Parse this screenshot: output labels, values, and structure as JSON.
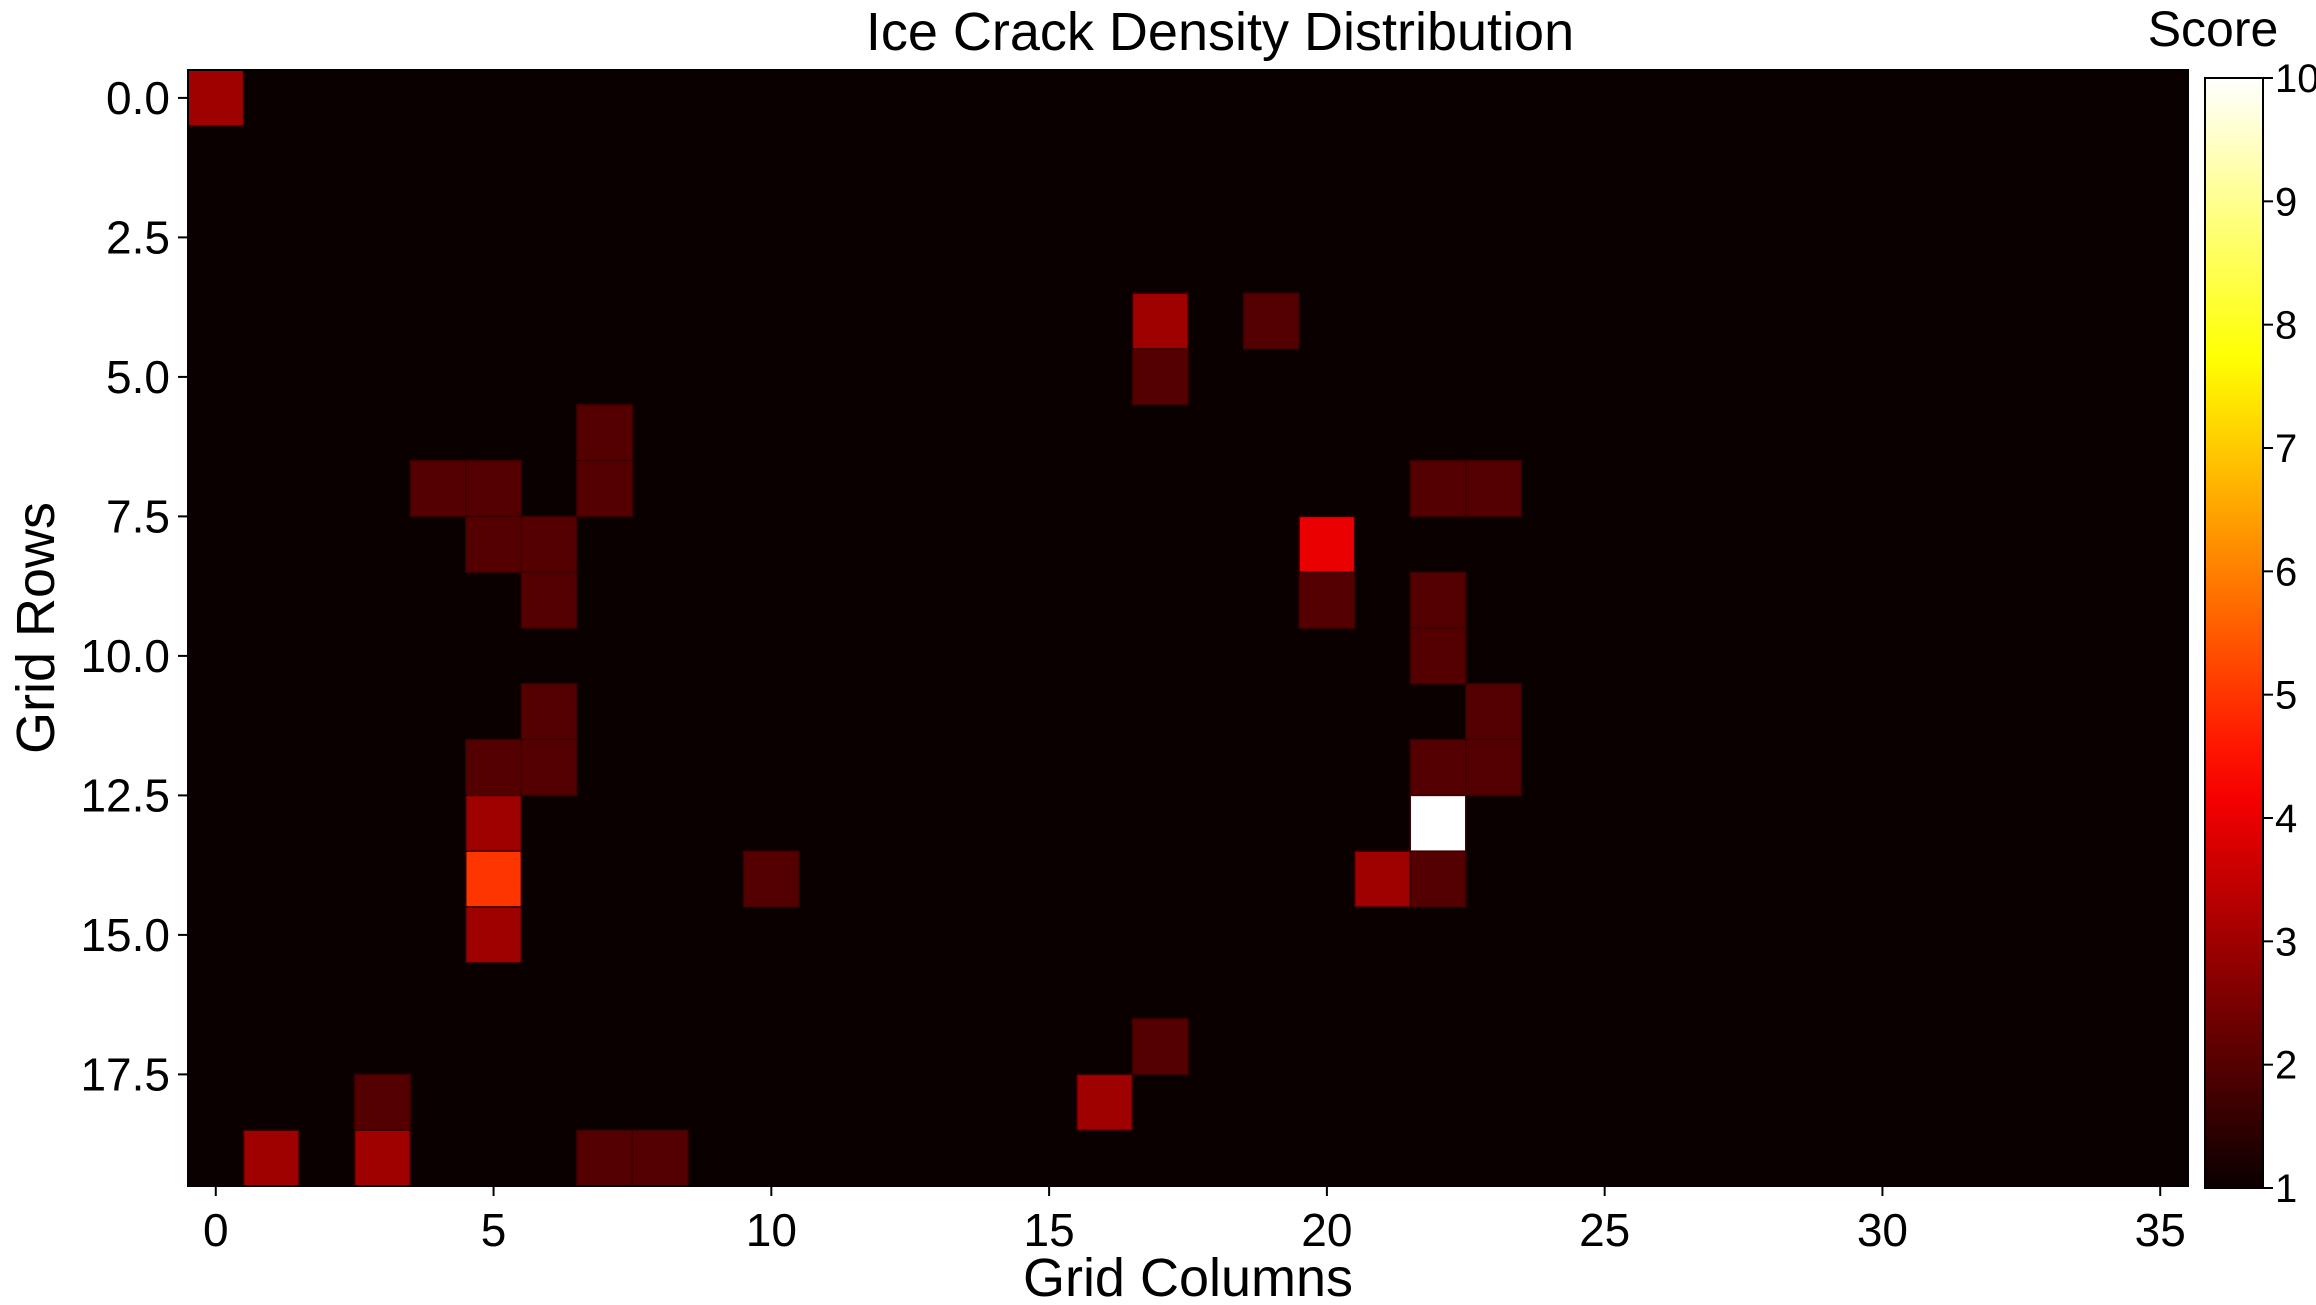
{
  "chart_data": {
    "type": "heatmap",
    "title": "Ice Crack Density Distribution",
    "xlabel": "Grid Columns",
    "ylabel": "Grid Rows",
    "n_cols": 36,
    "n_rows": 20,
    "xlim": [
      -0.5,
      35.5
    ],
    "ylim": [
      -0.5,
      19.5
    ],
    "x_ticks": [
      0,
      5,
      10,
      15,
      20,
      25,
      30,
      35
    ],
    "x_tick_labels": [
      "0",
      "5",
      "10",
      "15",
      "20",
      "25",
      "30",
      "35"
    ],
    "y_ticks": [
      0.0,
      2.5,
      5.0,
      7.5,
      10.0,
      12.5,
      15.0,
      17.5
    ],
    "y_tick_labels": [
      "0.0",
      "2.5",
      "5.0",
      "7.5",
      "10.0",
      "12.5",
      "15.0",
      "17.5"
    ],
    "y_axis_inverted": true,
    "background_value": 1,
    "colorbar": {
      "title": "Score",
      "colormap": "hot",
      "range": [
        1,
        10
      ],
      "ticks": [
        1,
        2,
        3,
        4,
        5,
        6,
        7,
        8,
        9,
        10
      ],
      "tick_labels": [
        "1",
        "2",
        "3",
        "4",
        "5",
        "6",
        "7",
        "8",
        "9",
        "10"
      ],
      "placement": "right"
    },
    "cells": [
      {
        "row": 0,
        "col": 0,
        "value": 3
      },
      {
        "row": 4,
        "col": 17,
        "value": 3
      },
      {
        "row": 4,
        "col": 19,
        "value": 2
      },
      {
        "row": 5,
        "col": 17,
        "value": 2
      },
      {
        "row": 6,
        "col": 7,
        "value": 2
      },
      {
        "row": 7,
        "col": 4,
        "value": 2
      },
      {
        "row": 7,
        "col": 5,
        "value": 2
      },
      {
        "row": 7,
        "col": 7,
        "value": 2
      },
      {
        "row": 7,
        "col": 22,
        "value": 2
      },
      {
        "row": 7,
        "col": 23,
        "value": 2
      },
      {
        "row": 8,
        "col": 5,
        "value": 2
      },
      {
        "row": 8,
        "col": 6,
        "value": 2
      },
      {
        "row": 8,
        "col": 20,
        "value": 4
      },
      {
        "row": 9,
        "col": 6,
        "value": 2
      },
      {
        "row": 9,
        "col": 20,
        "value": 2
      },
      {
        "row": 9,
        "col": 22,
        "value": 2
      },
      {
        "row": 10,
        "col": 22,
        "value": 2
      },
      {
        "row": 11,
        "col": 6,
        "value": 2
      },
      {
        "row": 11,
        "col": 23,
        "value": 2
      },
      {
        "row": 12,
        "col": 5,
        "value": 2
      },
      {
        "row": 12,
        "col": 6,
        "value": 2
      },
      {
        "row": 12,
        "col": 22,
        "value": 2
      },
      {
        "row": 12,
        "col": 23,
        "value": 2
      },
      {
        "row": 13,
        "col": 5,
        "value": 3
      },
      {
        "row": 13,
        "col": 22,
        "value": 10
      },
      {
        "row": 14,
        "col": 5,
        "value": 5
      },
      {
        "row": 14,
        "col": 10,
        "value": 2
      },
      {
        "row": 14,
        "col": 21,
        "value": 3
      },
      {
        "row": 14,
        "col": 22,
        "value": 2
      },
      {
        "row": 15,
        "col": 5,
        "value": 3
      },
      {
        "row": 17,
        "col": 17,
        "value": 2
      },
      {
        "row": 18,
        "col": 3,
        "value": 2
      },
      {
        "row": 18,
        "col": 16,
        "value": 3
      },
      {
        "row": 19,
        "col": 1,
        "value": 3
      },
      {
        "row": 19,
        "col": 3,
        "value": 3
      },
      {
        "row": 19,
        "col": 7,
        "value": 2
      },
      {
        "row": 19,
        "col": 8,
        "value": 2
      }
    ]
  }
}
